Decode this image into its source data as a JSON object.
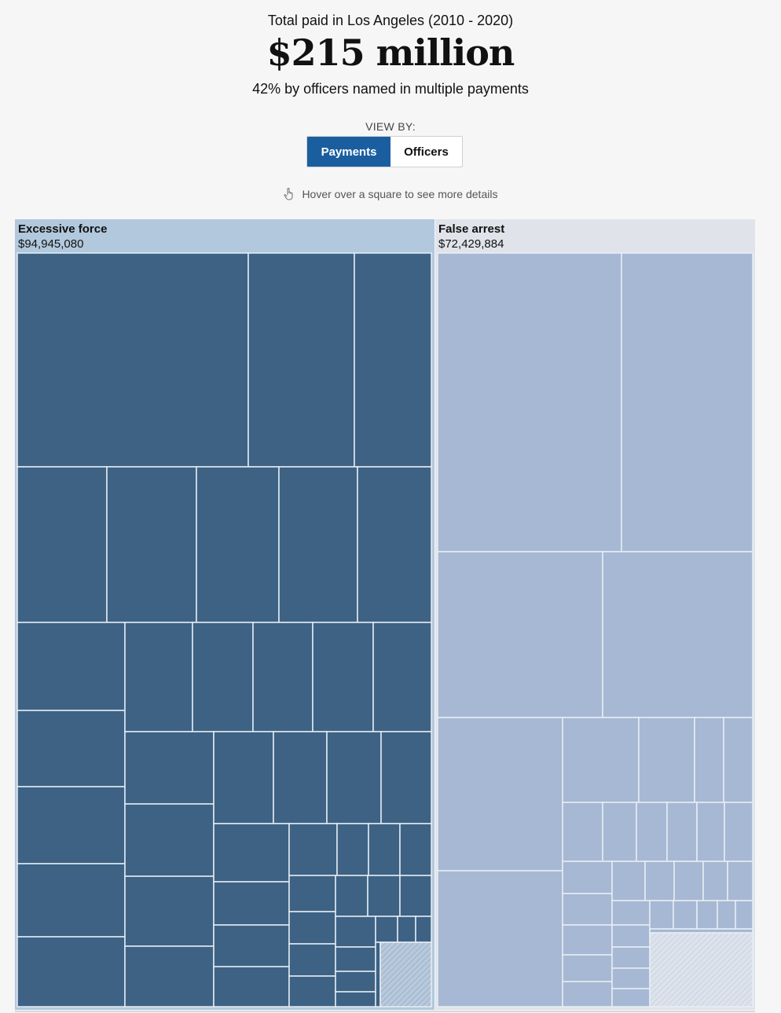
{
  "header": {
    "kicker": "Total paid in Los Angeles (2010 - 2020)",
    "total": "$215 million",
    "subtitle": "42% by officers named in multiple payments",
    "view_by_label": "VIEW BY:",
    "view_options": [
      "Payments",
      "Officers"
    ],
    "selected_view": "Payments",
    "hint": "Hover over a square to see more details"
  },
  "colors": {
    "excessive_force_cell": "#3d6284",
    "excessive_force_header": "#b1c8dd",
    "false_arrest_cell": "#a6b8d3",
    "false_arrest_header": "#e0e4ea",
    "cell_border": "#e8eef5",
    "accent_button": "#1b5ea0"
  },
  "chart_data": {
    "type": "treemap",
    "groups": [
      {
        "name": "Excessive force",
        "value_label": "$94,945,080",
        "value": 94945080
      },
      {
        "name": "False arrest",
        "value_label": "$72,429,884",
        "value": 72429884
      }
    ]
  }
}
